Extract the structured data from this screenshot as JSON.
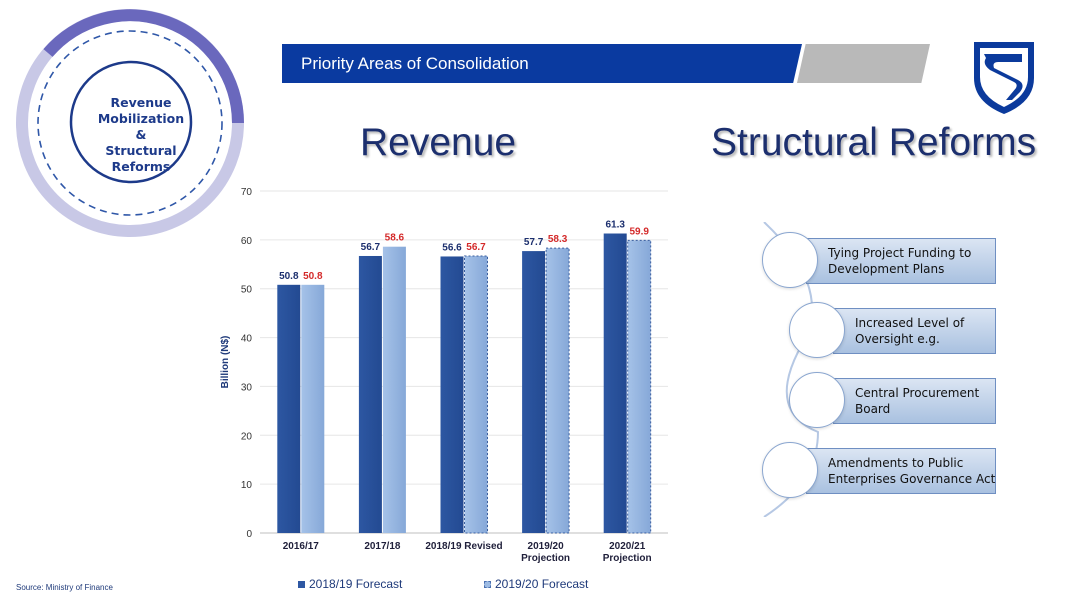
{
  "badge": {
    "text": "Revenue\nMobilization\n&\nStructural\nReforms"
  },
  "banner": {
    "title": "Priority Areas of Consolidation"
  },
  "headings": {
    "revenue": "Revenue",
    "structural": "Structural Reforms"
  },
  "icons": {
    "logo": "bank-shield-logo-icon"
  },
  "colors": {
    "banner": "#0a3aa0",
    "series_2018_19": "#2e58a3",
    "series_2019_20": "#9dbbe3",
    "label_2019_20": "#d42a2a",
    "heading": "#1c2f6e"
  },
  "chart_data": {
    "type": "bar",
    "categories": [
      "2016/17",
      "2017/18",
      "2018/19 Revised",
      "2019/20\nProjection",
      "2020/21\nProjection"
    ],
    "series": [
      {
        "name": "2018/19 Forecast",
        "values": [
          50.8,
          56.7,
          56.6,
          57.7,
          61.3
        ]
      },
      {
        "name": "2019/20 Forecast",
        "values": [
          50.8,
          58.6,
          56.7,
          58.3,
          59.9
        ]
      }
    ],
    "ylabel": "Billion (N$)",
    "xlabel": "",
    "ylim": [
      0,
      70
    ],
    "yticks": [
      0,
      10,
      20,
      30,
      40,
      50,
      60,
      70
    ],
    "grid": true,
    "legend_position": "bottom"
  },
  "source": "Source: Ministry of Finance",
  "reforms": [
    {
      "text": "Tying Project Funding to\nDevelopment Plans"
    },
    {
      "text": "Increased Level of\nOversight e.g."
    },
    {
      "text": "Central Procurement\nBoard"
    },
    {
      "text": "Amendments to Public\nEnterprises Governance Act"
    }
  ]
}
